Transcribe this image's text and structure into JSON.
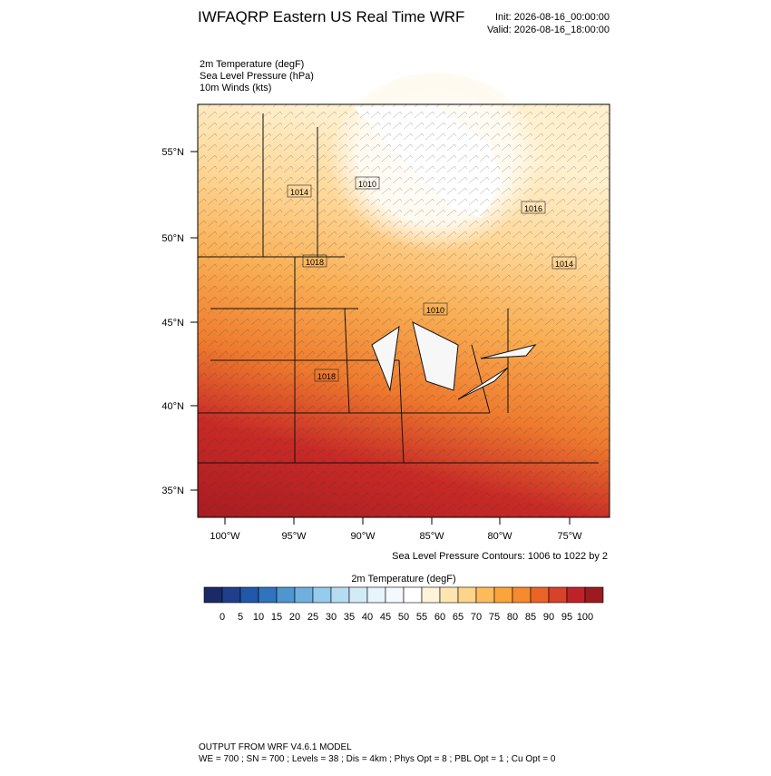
{
  "header": {
    "title": "IWFAQRP Eastern US Real Time WRF",
    "init": "Init: 2026-08-16_00:00:00",
    "valid": "Valid: 2026-08-16_18:00:00"
  },
  "fields": [
    "2m Temperature   (degF)",
    "Sea Level Pressure   (hPa)",
    "10m Winds   (kts)"
  ],
  "map": {
    "lat_labels": [
      "55°N",
      "50°N",
      "45°N",
      "40°N",
      "35°N"
    ],
    "lon_labels": [
      "100°W",
      "95°W",
      "90°W",
      "85°W",
      "80°W",
      "75°W"
    ],
    "contour_labels": [
      "1014",
      "1010",
      "1016",
      "1018",
      "1014",
      "1010",
      "1018"
    ],
    "contour_note": "Sea Level Pressure Contours: 1006 to 1022 by 2"
  },
  "colorbar": {
    "title": "2m Temperature  (degF)",
    "colors": [
      "#1b2a66",
      "#1f3f8c",
      "#2158a8",
      "#2f74bd",
      "#4f95cf",
      "#6fb0de",
      "#95cbeb",
      "#b6dcf2",
      "#d3ebf7",
      "#e6f4fb",
      "#f3f9fd",
      "#ffffff",
      "#fff3d9",
      "#ffe6b0",
      "#fed38a",
      "#fdbb5c",
      "#fba43c",
      "#f58a2e",
      "#ea6327",
      "#d8412a",
      "#bf2228",
      "#9c1a20"
    ],
    "labels": [
      0,
      5,
      10,
      15,
      20,
      25,
      30,
      35,
      40,
      45,
      50,
      55,
      60,
      65,
      70,
      75,
      80,
      85,
      90,
      95,
      100
    ]
  },
  "footer": [
    "OUTPUT FROM WRF V4.6.1 MODEL",
    "WE = 700 ; SN = 700 ; Levels = 38 ; Dis = 4km ; Phys Opt = 8 ; PBL Opt = 1 ; Cu Opt = 0"
  ]
}
